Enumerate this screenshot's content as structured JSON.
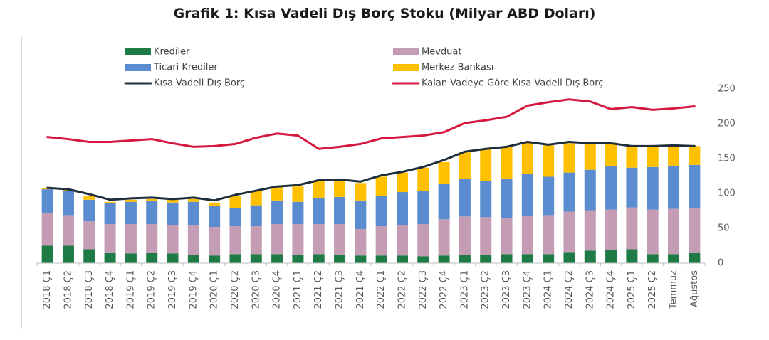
{
  "chart_data": {
    "type": "bar",
    "title": "Grafik 1: Kısa Vadeli Dış Borç Stoku (Milyar ABD Doları)",
    "stacked": true,
    "categories": [
      "2018 Ç1",
      "2018 Ç2",
      "2018 Ç3",
      "2018 Ç4",
      "2019 Ç1",
      "2019 Ç2",
      "2019 Ç3",
      "2019 Ç4",
      "2020 Ç1",
      "2020 Ç2",
      "2020 Ç3",
      "2020 Ç4",
      "2021 Ç1",
      "2021 Ç2",
      "2021 Ç3",
      "2021 Ç4",
      "2022 Ç1",
      "2022 Ç2",
      "2022 Ç3",
      "2022 Ç4",
      "2023 Ç1",
      "2023 Ç2",
      "2023 Ç3",
      "2023 Ç4",
      "2024 Ç1",
      "2024 Ç2",
      "2024 Ç3",
      "2024 Ç4",
      "2025 Ç1",
      "2025 Ç2",
      "Temmuz",
      "Ağustos"
    ],
    "ylim": [
      0,
      250
    ],
    "yticks": [
      0,
      50,
      100,
      150,
      200,
      250
    ],
    "yaxis_side": "right",
    "legend_position": "top",
    "series": [
      {
        "name": "Krediler",
        "kind": "bar",
        "color": "#1e7b45",
        "values": [
          25,
          25,
          20,
          15,
          14,
          15,
          14,
          12,
          11,
          13,
          13,
          13,
          12,
          13,
          12,
          11,
          11,
          11,
          10,
          11,
          12,
          12,
          13,
          13,
          13,
          16,
          18,
          19,
          20,
          13,
          13,
          15
        ]
      },
      {
        "name": "Mevduat",
        "kind": "bar",
        "color": "#c49cb4",
        "values": [
          47,
          44,
          40,
          41,
          42,
          41,
          41,
          42,
          41,
          40,
          40,
          43,
          44,
          43,
          44,
          38,
          42,
          44,
          46,
          52,
          55,
          54,
          52,
          55,
          56,
          58,
          58,
          58,
          60,
          64,
          65,
          64
        ]
      },
      {
        "name": "Ticari Krediler",
        "kind": "bar",
        "color": "#5b8ccf",
        "values": [
          34,
          35,
          31,
          30,
          32,
          33,
          32,
          34,
          30,
          26,
          30,
          34,
          32,
          38,
          39,
          41,
          44,
          47,
          48,
          51,
          54,
          52,
          56,
          60,
          55,
          56,
          58,
          62,
          57,
          61,
          62,
          62
        ]
      },
      {
        "name": "Merkez Bankası",
        "kind": "bar",
        "color": "#ffc000",
        "values": [
          2,
          2,
          5,
          2,
          3,
          3,
          4,
          4,
          5,
          18,
          21,
          20,
          22,
          24,
          25,
          25,
          27,
          28,
          33,
          31,
          38,
          46,
          46,
          45,
          45,
          42,
          38,
          34,
          31,
          30,
          29,
          27
        ]
      },
      {
        "name": "Kısa Vadeli Dış Borç",
        "kind": "line",
        "color": "#1f2e3d",
        "values": [
          108,
          106,
          99,
          91,
          93,
          94,
          92,
          94,
          90,
          98,
          104,
          110,
          112,
          119,
          120,
          117,
          126,
          131,
          138,
          148,
          160,
          164,
          167,
          174,
          170,
          174,
          172,
          172,
          168,
          168,
          169,
          168
        ]
      },
      {
        "name": "Kalan Vadeye Göre Kısa Vadeli Dış Borç",
        "kind": "line",
        "color": "#d6183e",
        "values": [
          181,
          178,
          174,
          174,
          176,
          178,
          172,
          167,
          168,
          171,
          180,
          186,
          183,
          164,
          167,
          171,
          179,
          181,
          183,
          188,
          201,
          205,
          210,
          226,
          231,
          235,
          232,
          221,
          224,
          220,
          222,
          225
        ]
      }
    ]
  }
}
